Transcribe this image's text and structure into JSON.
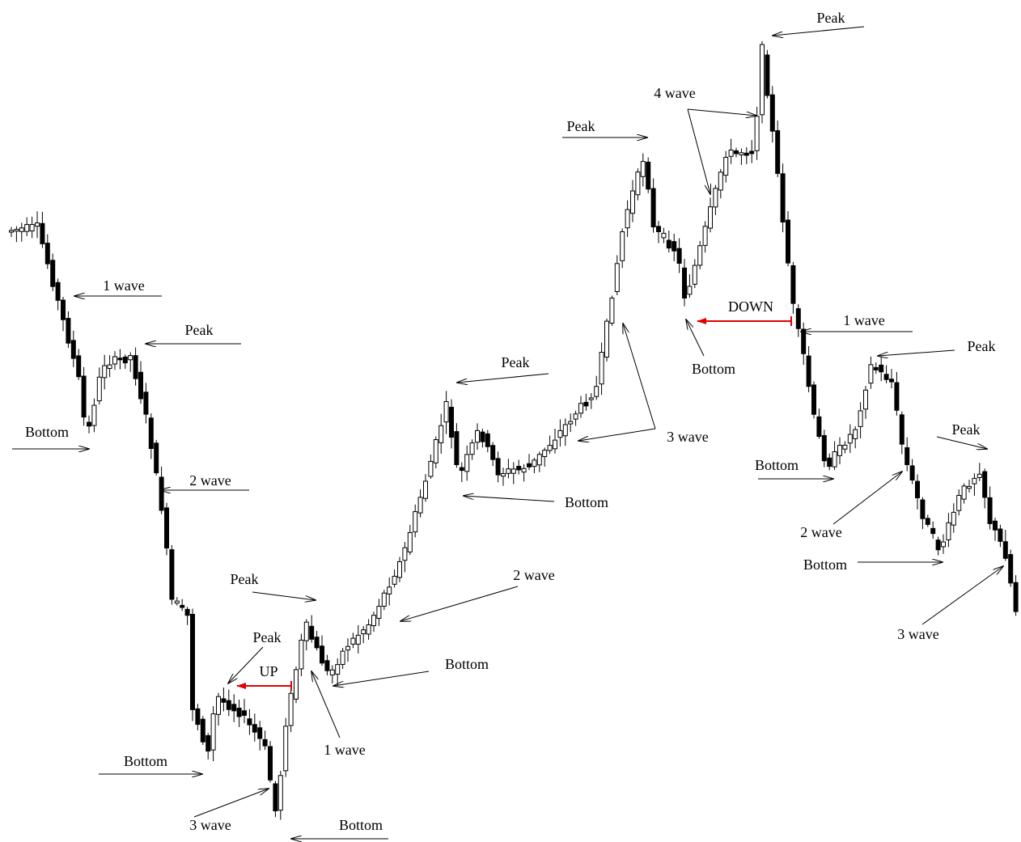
{
  "annotations": [
    {
      "text": "1 wave"
    },
    {
      "text": "Peak"
    },
    {
      "text": "Bottom"
    },
    {
      "text": "2 wave"
    },
    {
      "text": "Bottom"
    },
    {
      "text": "3 wave"
    },
    {
      "text": "Bottom"
    },
    {
      "text": "Peak"
    },
    {
      "text": "UP"
    },
    {
      "text": "Peak"
    },
    {
      "text": "1 wave"
    },
    {
      "text": "Bottom"
    },
    {
      "text": "2 wave"
    },
    {
      "text": "Peak"
    },
    {
      "text": "Bottom"
    },
    {
      "text": "3 wave"
    },
    {
      "text": "Peak"
    },
    {
      "text": "4 wave"
    },
    {
      "text": "Peak"
    },
    {
      "text": "DOWN"
    },
    {
      "text": "Bottom"
    },
    {
      "text": "1 wave"
    },
    {
      "text": "Peak"
    },
    {
      "text": "Bottom"
    },
    {
      "text": "2 wave"
    },
    {
      "text": "Peak"
    },
    {
      "text": "Bottom"
    },
    {
      "text": "3 wave"
    }
  ]
}
